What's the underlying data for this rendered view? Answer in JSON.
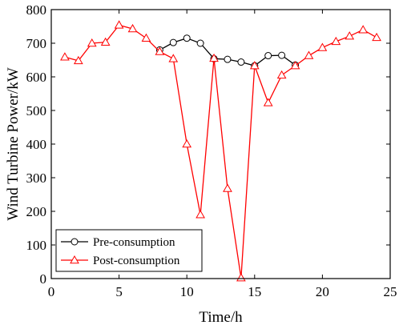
{
  "chart_data": {
    "type": "line",
    "xlabel": "Time/h",
    "ylabel": "Wind Turbine Power/kW",
    "xlim": [
      0,
      25
    ],
    "ylim": [
      0,
      800
    ],
    "xticks": [
      0,
      5,
      10,
      15,
      20,
      25
    ],
    "yticks": [
      0,
      100,
      200,
      300,
      400,
      500,
      600,
      700,
      800
    ],
    "grid": false,
    "legend_position": "bottom-left",
    "series": [
      {
        "name": "Pre-consumption",
        "color": "#000000",
        "marker": "circle",
        "x": [
          8,
          9,
          10,
          11,
          12,
          13,
          14,
          15,
          16,
          17,
          18
        ],
        "values": [
          680,
          702,
          715,
          700,
          654,
          652,
          644,
          633,
          663,
          664,
          635
        ]
      },
      {
        "name": "Post-consumption",
        "color": "#ff0000",
        "marker": "triangle",
        "x": [
          1,
          2,
          3,
          4,
          5,
          6,
          7,
          8,
          9,
          10,
          11,
          12,
          13,
          14,
          15,
          16,
          17,
          18,
          19,
          20,
          21,
          22,
          23,
          24
        ],
        "values": [
          659,
          648,
          700,
          703,
          754,
          743,
          715,
          675,
          654,
          400,
          190,
          655,
          268,
          2,
          633,
          523,
          605,
          633,
          663,
          687,
          705,
          721,
          740,
          717
        ]
      }
    ]
  }
}
